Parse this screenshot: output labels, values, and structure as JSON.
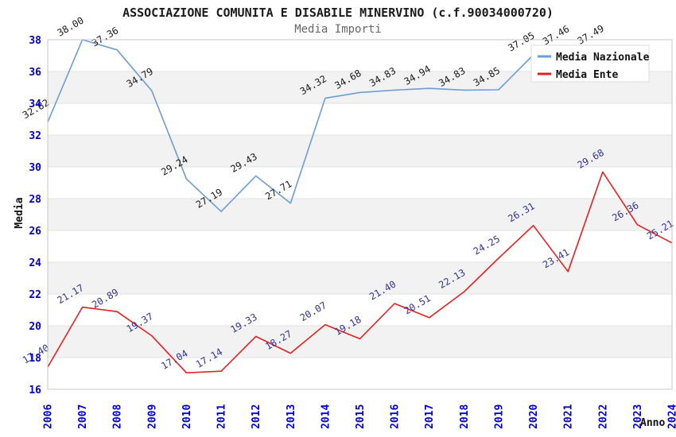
{
  "title": "ASSOCIAZIONE COMUNITA E DISABILE MINERVINO (c.f.90034000720)",
  "subtitle": "Media Importi",
  "axes": {
    "y_title": "Media",
    "x_title": "Anno",
    "y_ticks": [
      16,
      18,
      20,
      22,
      24,
      26,
      28,
      30,
      32,
      34,
      36,
      38
    ],
    "x_ticks": [
      "2006",
      "2007",
      "2008",
      "2009",
      "2010",
      "2011",
      "2012",
      "2013",
      "2014",
      "2015",
      "2016",
      "2017",
      "2018",
      "2019",
      "2020",
      "2021",
      "2022",
      "2023",
      "2024"
    ]
  },
  "legend": {
    "position": "top-right",
    "items": [
      {
        "label": "Media Nazionale",
        "color": "#6d9dd4"
      },
      {
        "label": "Media Ente",
        "color": "#e02222"
      }
    ]
  },
  "colors": {
    "tick_label": "#0000cc",
    "band_gray": "#f2f2f2",
    "band_white": "#ffffff",
    "grid_line": "#e3e3e3",
    "plot_border": "#c8c8c8",
    "axis_title": "#111111",
    "legend_bg": "#ffffff",
    "legend_border": "#dddddd",
    "legend_text": "#111111"
  },
  "chart_data": {
    "type": "line",
    "x": [
      2006,
      2007,
      2008,
      2009,
      2010,
      2011,
      2012,
      2013,
      2014,
      2015,
      2016,
      2017,
      2018,
      2019,
      2020,
      2021,
      2022,
      2023,
      2024
    ],
    "xlabel": "Anno",
    "ylabel": "Media",
    "ylim": [
      16,
      38
    ],
    "y_tick_step": 2,
    "grid_bands": true,
    "legend_position": "top-right",
    "series": [
      {
        "name": "Media Nazionale",
        "color": "#6d9dd4",
        "label_color": "#1a1a1a",
        "values": [
          32.82,
          38.0,
          37.36,
          34.79,
          29.24,
          27.19,
          29.43,
          27.71,
          34.32,
          34.68,
          34.83,
          34.94,
          34.83,
          34.85,
          37.05,
          37.46,
          37.49,
          null,
          null
        ]
      },
      {
        "name": "Media Ente",
        "color": "#e02222",
        "label_color": "#333399",
        "values": [
          17.4,
          21.17,
          20.89,
          19.37,
          17.04,
          17.14,
          19.33,
          18.27,
          20.07,
          19.18,
          21.4,
          20.51,
          22.13,
          24.25,
          26.31,
          23.41,
          29.68,
          26.36,
          25.21
        ]
      }
    ]
  }
}
